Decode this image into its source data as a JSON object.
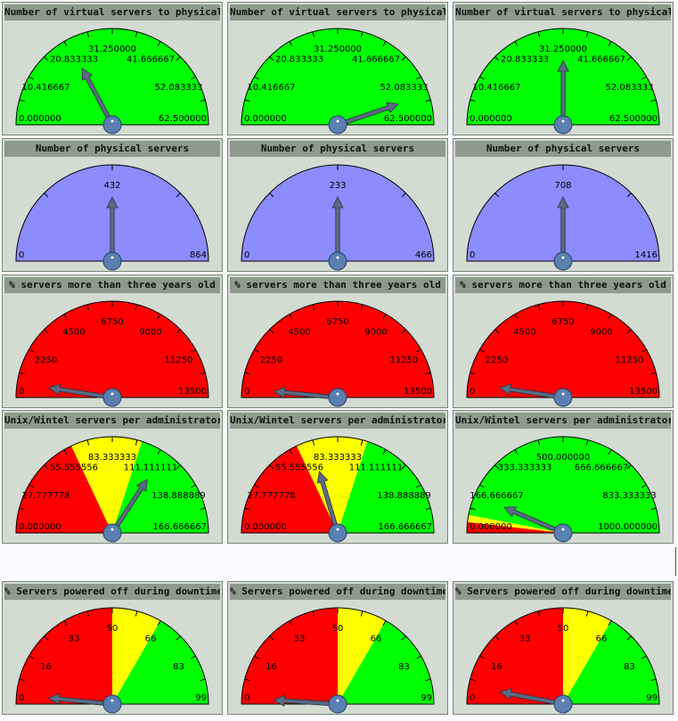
{
  "colors": {
    "green": "#00ff00",
    "red": "#ff0000",
    "yellow": "#ffff00",
    "blue": "#8c8cff",
    "needle": "#5a6a82",
    "hub": "#5a7fb0",
    "panel": "#d3dbd3",
    "titlebar": "#8e9a8e"
  },
  "rows": [
    {
      "title": "Number of virtual servers to physical",
      "min": 0,
      "max": 62.5,
      "ticks": [
        "0.000000",
        "10.416667",
        "20.833333",
        "31.250000",
        "41.666667",
        "52.083333",
        "62.500000"
      ],
      "bands": [
        {
          "from": 0,
          "to": 62.5,
          "color": "#00ff00"
        }
      ],
      "gauges": [
        {
          "value": 21.5
        },
        {
          "value": 56.0
        },
        {
          "value": 31.3
        }
      ]
    },
    {
      "title": "Number of physical servers",
      "gauges": [
        {
          "min": 0,
          "max": 864,
          "ticks": [
            "0",
            "432",
            "864"
          ],
          "value": 432,
          "bands": [
            {
              "from": 0,
              "to": 864,
              "color": "#8c8cff"
            }
          ]
        },
        {
          "min": 0,
          "max": 466,
          "ticks": [
            "0",
            "233",
            "466"
          ],
          "value": 233,
          "bands": [
            {
              "from": 0,
              "to": 466,
              "color": "#8c8cff"
            }
          ]
        },
        {
          "min": 0,
          "max": 1416,
          "ticks": [
            "0",
            "708",
            "1416"
          ],
          "value": 708,
          "bands": [
            {
              "from": 0,
              "to": 1416,
              "color": "#8c8cff"
            }
          ]
        }
      ]
    },
    {
      "title": "% servers more than three years old",
      "min": 0,
      "max": 13500,
      "ticks": [
        "0",
        "2250",
        "4500",
        "6750",
        "9000",
        "11250",
        "13500"
      ],
      "bands": [
        {
          "from": 0,
          "to": 13500,
          "color": "#ff0000"
        }
      ],
      "gauges": [
        {
          "value": 650
        },
        {
          "value": 400
        },
        {
          "value": 650
        }
      ]
    },
    {
      "title": "Unix/Wintel servers per administrator",
      "gauges": [
        {
          "min": 0,
          "max": 166.666667,
          "ticks": [
            "0.000000",
            "27.777778",
            "55.555556",
            "83.333333",
            "111.111111",
            "138.888889",
            "166.666667"
          ],
          "value": 114,
          "bands": [
            {
              "from": 0,
              "to": 60,
              "color": "#ff0000"
            },
            {
              "from": 60,
              "to": 100,
              "color": "#ffff00"
            },
            {
              "from": 100,
              "to": 166.666667,
              "color": "#00ff00"
            }
          ]
        },
        {
          "min": 0,
          "max": 166.666667,
          "ticks": [
            "0.000000",
            "27.777778",
            "55.555556",
            "83.333333",
            "111.111111",
            "138.888889",
            "166.666667"
          ],
          "value": 68,
          "bands": [
            {
              "from": 0,
              "to": 60,
              "color": "#ff0000"
            },
            {
              "from": 60,
              "to": 100,
              "color": "#ffff00"
            },
            {
              "from": 100,
              "to": 166.666667,
              "color": "#00ff00"
            }
          ]
        },
        {
          "min": 0,
          "max": 1000,
          "ticks": [
            "0.000000",
            "166.666667",
            "333.333333",
            "500.000000",
            "666.666667",
            "833.333333",
            "1000.000000"
          ],
          "value": 130,
          "bands": [
            {
              "from": 0,
              "to": 36,
              "color": "#ff0000"
            },
            {
              "from": 36,
              "to": 60,
              "color": "#ffff00"
            },
            {
              "from": 60,
              "to": 1000,
              "color": "#00ff00"
            }
          ]
        }
      ]
    },
    {
      "title": "% Servers powered off during downtime",
      "min": 0,
      "max": 99,
      "ticks": [
        "0",
        "16",
        "33",
        "50",
        "66",
        "83",
        "99"
      ],
      "bands": [
        {
          "from": 0,
          "to": 49.5,
          "color": "#ff0000"
        },
        {
          "from": 49.5,
          "to": 66,
          "color": "#ffff00"
        },
        {
          "from": 66,
          "to": 99,
          "color": "#00ff00"
        }
      ],
      "gauges": [
        {
          "value": 3
        },
        {
          "value": 2
        },
        {
          "value": 6
        }
      ]
    }
  ]
}
